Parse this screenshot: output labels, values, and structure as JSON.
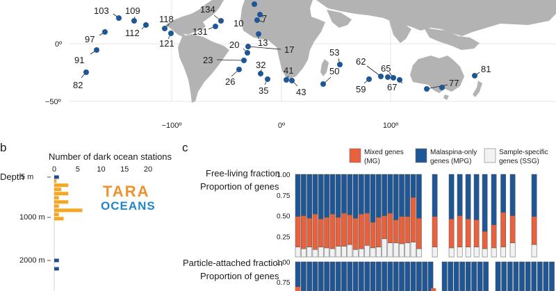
{
  "panel_a": {
    "longitude_ticks": [
      "−100º",
      "0º",
      "100º"
    ],
    "latitude_ticks": [
      "0º",
      "−50º"
    ],
    "stations": [
      {
        "label": "103",
        "lon": -139,
        "lat": 27
      },
      {
        "label": "109",
        "lon": -126,
        "lat": 25
      },
      {
        "label": "112",
        "lon": -117,
        "lat": 21
      },
      {
        "label": "134",
        "lon": -58,
        "lat": 26
      },
      {
        "label": "118",
        "lon": -104,
        "lat": 17
      },
      {
        "label": "131",
        "lon": -70,
        "lat": 18
      },
      {
        "label": "10",
        "lon": -17,
        "lat": 27
      },
      {
        "label": "7",
        "lon": -23,
        "lat": 16
      },
      {
        "label": "97",
        "lon": -152,
        "lat": 9
      },
      {
        "label": "121",
        "lon": -98,
        "lat": 6
      },
      {
        "label": "13",
        "lon": -21,
        "lat": 10
      },
      {
        "label": "91",
        "lon": -160,
        "lat": -11
      },
      {
        "label": "17",
        "lon": -37,
        "lat": -6
      },
      {
        "label": "20",
        "lon": -34,
        "lat": -17
      },
      {
        "label": "23",
        "lon": -30,
        "lat": -26
      },
      {
        "label": "53",
        "lon": 70,
        "lat": -8
      },
      {
        "label": "26",
        "lon": -36,
        "lat": -34
      },
      {
        "label": "32",
        "lon": -18,
        "lat": -31
      },
      {
        "label": "82",
        "lon": -165,
        "lat": -32
      },
      {
        "label": "41",
        "lon": 5,
        "lat": -39
      },
      {
        "label": "62",
        "lon": 80,
        "lat": -32
      },
      {
        "label": "65",
        "lon": 93,
        "lat": -33
      },
      {
        "label": "81",
        "lon": 170,
        "lat": -34
      },
      {
        "label": "35",
        "lon": -12,
        "lat": -38
      },
      {
        "label": "50",
        "lon": 35,
        "lat": -41
      },
      {
        "label": "43",
        "lon": 15,
        "lat": -40
      },
      {
        "label": "59",
        "lon": 69,
        "lat": -35
      },
      {
        "label": "67",
        "lon": 103,
        "lat": -37
      },
      {
        "label": "77",
        "lon": 145,
        "lat": -44
      }
    ]
  },
  "panel_b": {
    "panel_label": "b",
    "x_title": "Number of dark ocean stations",
    "x_ticks": [
      "0",
      "5",
      "10",
      "15",
      "20"
    ],
    "depth_title": "Depth",
    "depth_ticks": [
      "5 m",
      "1000 m",
      "2000 m"
    ],
    "logo_top": "TARA",
    "logo_bottom": "OCEANS",
    "colors": {
      "tara": "#f5a623",
      "malaspina": "#1f4e8c"
    }
  },
  "panel_c": {
    "panel_label": "c",
    "legend": [
      {
        "label": "Mixed genes\n(MG)",
        "color": "#e8603c"
      },
      {
        "label": "Malaspina-only\ngenes (MPG)",
        "color": "#1f5796"
      },
      {
        "label": "Sample-specific\ngenes (SSG)",
        "color": "#f2f2f2"
      }
    ],
    "free_living_title": "Free-living fraction",
    "particle_title": "Particle-attached fraction",
    "y_title": "Proportion of genes",
    "y_ticks": [
      "1.00",
      "0.75",
      "0.50",
      "0.25"
    ],
    "y_ticks_particle": [
      "1.00",
      "0.75"
    ]
  },
  "chart_data": [
    {
      "type": "bar",
      "title": "Number of dark ocean stations",
      "xlabel": "Number of dark ocean stations",
      "ylabel": "Depth",
      "xlim": [
        0,
        20
      ],
      "series": [
        {
          "name": "Tara Oceans",
          "depths_m": [
            100,
            200,
            300,
            400,
            500,
            600,
            700,
            800,
            900,
            1000
          ],
          "values": [
            0.5,
            3,
            1.5,
            3,
            1,
            3,
            1,
            6,
            1,
            2
          ]
        },
        {
          "name": "Malaspina",
          "depths_m": [
            5,
            2000,
            2200
          ],
          "values": [
            1,
            1,
            1
          ]
        }
      ]
    },
    {
      "type": "bar",
      "title": "Free-living fraction",
      "ylabel": "Proportion of genes",
      "ylim": [
        0,
        1
      ],
      "series": [
        {
          "name": "Sample-specific genes (SSG)",
          "values": [
            0.12,
            0.1,
            0.12,
            0.09,
            0.12,
            0.11,
            0.1,
            0.13,
            0.13,
            0.15,
            0.09,
            0.1,
            0.14,
            0.11,
            0.12,
            0.22,
            0.17,
            0.17,
            0.16,
            0.17,
            0.18,
            0.1,
            0.12,
            0.11,
            0.12,
            0.12,
            0.12,
            0.1,
            0.11,
            0.12,
            0.17,
            0.15
          ]
        },
        {
          "name": "Mixed genes (MG)",
          "values": [
            0.37,
            0.4,
            0.35,
            0.43,
            0.34,
            0.37,
            0.42,
            0.35,
            0.4,
            0.36,
            0.38,
            0.42,
            0.39,
            0.31,
            0.36,
            0.28,
            0.36,
            0.28,
            0.33,
            0.32,
            0.54,
            0.37,
            0.37,
            0.35,
            0.38,
            0.34,
            0.33,
            0.21,
            0.28,
            0.42,
            0.33,
            0.34
          ]
        },
        {
          "name": "Malaspina-only genes (MPG)",
          "values": [
            0.51,
            0.5,
            0.53,
            0.48,
            0.54,
            0.52,
            0.48,
            0.52,
            0.47,
            0.49,
            0.53,
            0.48,
            0.47,
            0.58,
            0.52,
            0.5,
            0.47,
            0.55,
            0.51,
            0.51,
            0.28,
            0.53,
            0.51,
            0.54,
            0.5,
            0.54,
            0.55,
            0.69,
            0.61,
            0.46,
            0.5,
            0.51
          ]
        }
      ]
    }
  ]
}
